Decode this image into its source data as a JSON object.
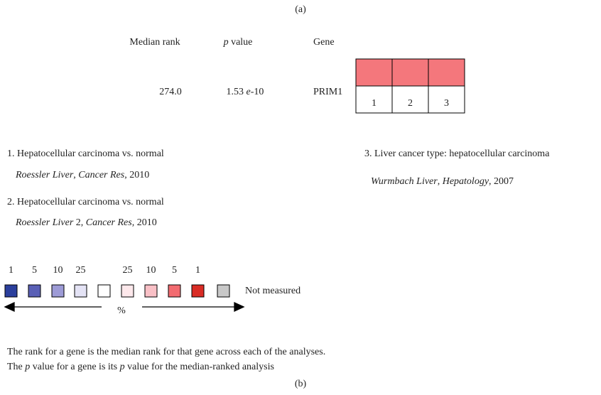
{
  "panel_a": "(a)",
  "panel_b": "(b)",
  "header": {
    "median_rank": [
      {
        "text": "Median rank"
      }
    ],
    "p_value": [
      {
        "text": "p",
        "italic": true
      },
      {
        "text": " value"
      }
    ],
    "gene": [
      {
        "text": "Gene"
      }
    ]
  },
  "row": {
    "median_rank": [
      {
        "text": "274.0"
      }
    ],
    "p_value": [
      {
        "text": "1.53 "
      },
      {
        "text": "e",
        "italic": true
      },
      {
        "text": "-10"
      }
    ],
    "gene": [
      {
        "text": "PRIM1"
      }
    ]
  },
  "cells": [
    {
      "label": "1",
      "color": "#f4777c"
    },
    {
      "label": "2",
      "color": "#f4777c"
    },
    {
      "label": "3",
      "color": "#f4777c"
    }
  ],
  "studies": [
    {
      "title": [
        {
          "text": "1. Hepatocellular carcinoma vs. normal"
        }
      ],
      "source": [
        {
          "text": "Roessler Liver",
          "italic": true
        },
        {
          "text": ", "
        },
        {
          "text": "Cancer Res",
          "italic": true
        },
        {
          "text": ", 2010"
        }
      ]
    },
    {
      "title": [
        {
          "text": "2. Hepatocellular carcinoma vs. normal"
        }
      ],
      "source": [
        {
          "text": "Roessler Liver",
          "italic": true
        },
        {
          "text": " 2, "
        },
        {
          "text": "Cancer Res",
          "italic": true
        },
        {
          "text": ", 2010"
        }
      ]
    },
    {
      "title": [
        {
          "text": "3. Liver cancer type: hepatocellular carcinoma"
        }
      ],
      "source": [
        {
          "text": "Wurmbach Liver",
          "italic": true
        },
        {
          "text": ", "
        },
        {
          "text": "Hepatology",
          "italic": true
        },
        {
          "text": ", 2007"
        }
      ]
    }
  ],
  "legend": {
    "swatches": [
      {
        "label": "1",
        "color": "#2b3f9c"
      },
      {
        "label": "5",
        "color": "#5a60b6"
      },
      {
        "label": "10",
        "color": "#9d9bd6"
      },
      {
        "label": "25",
        "color": "#e4e3f5"
      },
      {
        "color": "#ffffff"
      },
      {
        "label": "25",
        "color": "#fde8eb"
      },
      {
        "label": "10",
        "color": "#f9c0c6"
      },
      {
        "label": "5",
        "color": "#f26b70"
      },
      {
        "label": "1",
        "color": "#d92c25"
      }
    ],
    "percent": "%",
    "not_measured": {
      "label": "Not measured",
      "color": "#c8c8c8"
    }
  },
  "notes": [
    [
      {
        "text": "The rank for a gene is the median rank for that gene across each of the analyses."
      }
    ],
    [
      {
        "text": "The "
      },
      {
        "text": "p",
        "italic": true
      },
      {
        "text": " value for a gene is its "
      },
      {
        "text": "p",
        "italic": true
      },
      {
        "text": " value for the median-ranked analysis"
      }
    ]
  ]
}
